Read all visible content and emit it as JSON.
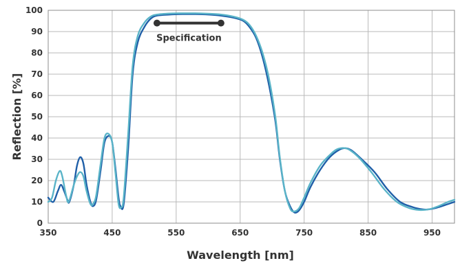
{
  "chart_data": {
    "type": "line",
    "title": "",
    "xlabel": "Wavelength [nm]",
    "ylabel": "Reflection [%]",
    "xlim": [
      350,
      985
    ],
    "ylim": [
      0,
      100
    ],
    "x_ticks": [
      350,
      450,
      550,
      650,
      750,
      850,
      950
    ],
    "y_ticks": [
      0,
      10,
      20,
      30,
      40,
      50,
      60,
      70,
      80,
      90,
      100
    ],
    "grid": true,
    "series": [
      {
        "color": "#1f5fa8",
        "points": [
          [
            350,
            12
          ],
          [
            358,
            10
          ],
          [
            365,
            15
          ],
          [
            370,
            18
          ],
          [
            375,
            15
          ],
          [
            380,
            11
          ],
          [
            383,
            10
          ],
          [
            390,
            18
          ],
          [
            395,
            27
          ],
          [
            400,
            31
          ],
          [
            405,
            28
          ],
          [
            410,
            18
          ],
          [
            416,
            10
          ],
          [
            420,
            8
          ],
          [
            425,
            11
          ],
          [
            432,
            25
          ],
          [
            438,
            38
          ],
          [
            445,
            41
          ],
          [
            450,
            38
          ],
          [
            455,
            26
          ],
          [
            460,
            12
          ],
          [
            463,
            8
          ],
          [
            468,
            9
          ],
          [
            475,
            35
          ],
          [
            482,
            70
          ],
          [
            490,
            85
          ],
          [
            500,
            92
          ],
          [
            510,
            96
          ],
          [
            520,
            97.5
          ],
          [
            540,
            98
          ],
          [
            560,
            98.2
          ],
          [
            580,
            98.2
          ],
          [
            600,
            98
          ],
          [
            620,
            97.5
          ],
          [
            640,
            96.5
          ],
          [
            655,
            95
          ],
          [
            665,
            92
          ],
          [
            675,
            87
          ],
          [
            685,
            78
          ],
          [
            695,
            65
          ],
          [
            705,
            48
          ],
          [
            712,
            30
          ],
          [
            720,
            15
          ],
          [
            728,
            8
          ],
          [
            735,
            5
          ],
          [
            742,
            6
          ],
          [
            750,
            10
          ],
          [
            760,
            17
          ],
          [
            775,
            25
          ],
          [
            790,
            31
          ],
          [
            805,
            34.5
          ],
          [
            815,
            35.2
          ],
          [
            825,
            34
          ],
          [
            840,
            30
          ],
          [
            860,
            24
          ],
          [
            880,
            16
          ],
          [
            900,
            10
          ],
          [
            920,
            7.5
          ],
          [
            935,
            6.5
          ],
          [
            945,
            6.5
          ],
          [
            960,
            7.5
          ],
          [
            975,
            9
          ],
          [
            985,
            10
          ]
        ]
      },
      {
        "color": "#5ab4c8",
        "points": [
          [
            350,
            10
          ],
          [
            356,
            12
          ],
          [
            362,
            20
          ],
          [
            368,
            24.5
          ],
          [
            372,
            22
          ],
          [
            378,
            13
          ],
          [
            382,
            10
          ],
          [
            390,
            18
          ],
          [
            395,
            22
          ],
          [
            400,
            24
          ],
          [
            405,
            22
          ],
          [
            410,
            15
          ],
          [
            416,
            9
          ],
          [
            420,
            9
          ],
          [
            425,
            13
          ],
          [
            432,
            28
          ],
          [
            438,
            40
          ],
          [
            444,
            42
          ],
          [
            450,
            38
          ],
          [
            455,
            24
          ],
          [
            460,
            9
          ],
          [
            464,
            7.5
          ],
          [
            468,
            12
          ],
          [
            475,
            42
          ],
          [
            482,
            74
          ],
          [
            490,
            88
          ],
          [
            500,
            94
          ],
          [
            510,
            97
          ],
          [
            520,
            98
          ],
          [
            540,
            98.5
          ],
          [
            560,
            98.6
          ],
          [
            580,
            98.6
          ],
          [
            600,
            98.4
          ],
          [
            620,
            98
          ],
          [
            640,
            97
          ],
          [
            655,
            95.5
          ],
          [
            665,
            93
          ],
          [
            675,
            88
          ],
          [
            685,
            80
          ],
          [
            695,
            68
          ],
          [
            705,
            50
          ],
          [
            712,
            31
          ],
          [
            720,
            15
          ],
          [
            728,
            7
          ],
          [
            734,
            5.5
          ],
          [
            742,
            7
          ],
          [
            750,
            12
          ],
          [
            760,
            19
          ],
          [
            775,
            27
          ],
          [
            790,
            32
          ],
          [
            800,
            34.5
          ],
          [
            810,
            35.3
          ],
          [
            820,
            34.6
          ],
          [
            835,
            31
          ],
          [
            855,
            24
          ],
          [
            875,
            16
          ],
          [
            895,
            10
          ],
          [
            915,
            7
          ],
          [
            930,
            6.2
          ],
          [
            945,
            6.5
          ],
          [
            960,
            8
          ],
          [
            975,
            10
          ],
          [
            985,
            11
          ]
        ]
      }
    ],
    "annotations": [
      {
        "text": "Specification",
        "x_range": [
          520,
          620
        ],
        "y": 94,
        "color": "#333333"
      }
    ]
  }
}
